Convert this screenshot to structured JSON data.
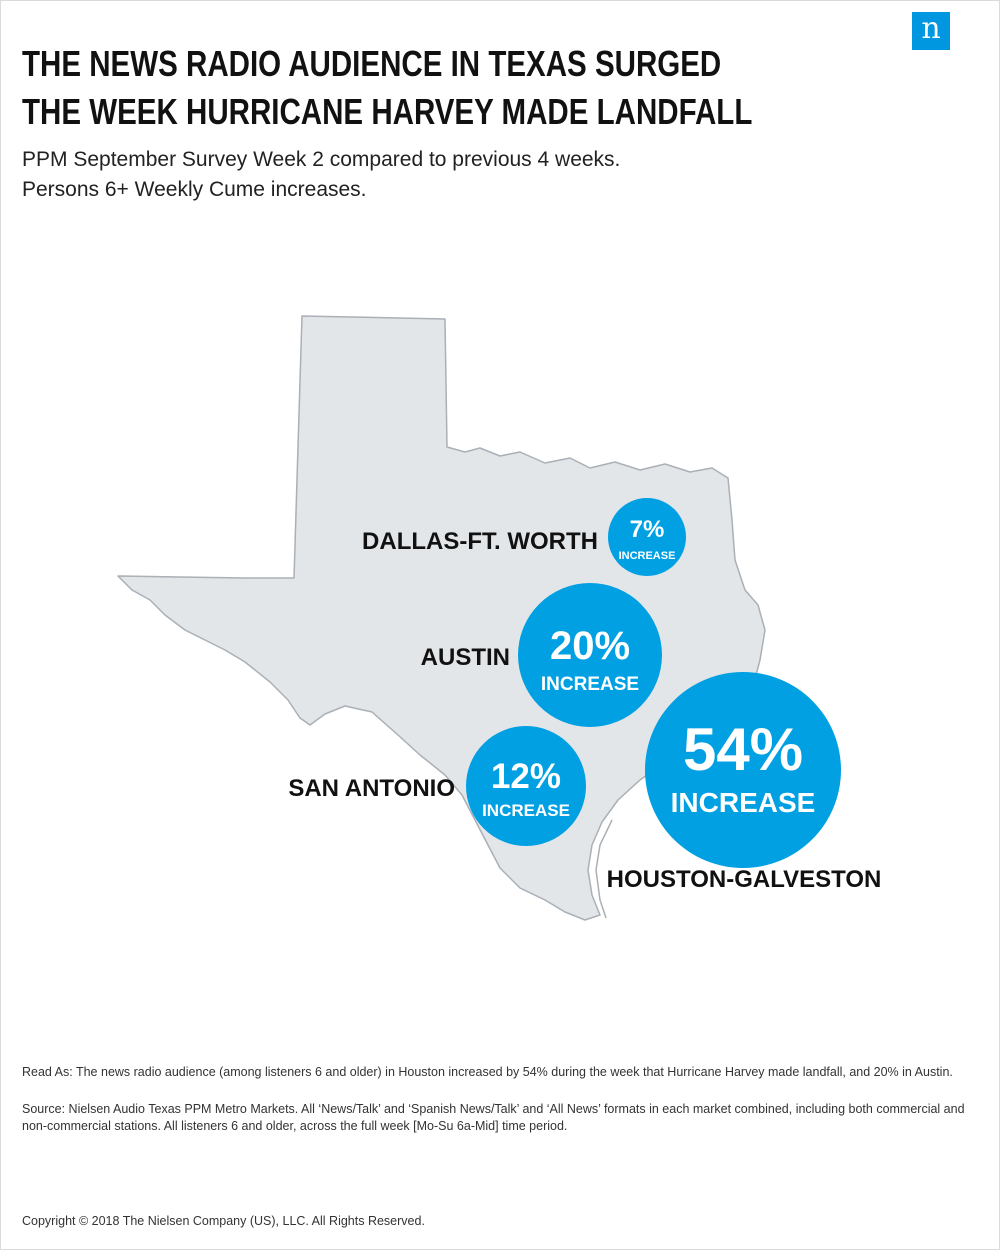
{
  "brand": {
    "logo_letter": "n"
  },
  "title_lines": [
    "THE NEWS RADIO AUDIENCE IN TEXAS SURGED",
    "THE WEEK HURRICANE HARVEY MADE LANDFALL"
  ],
  "subtitle_lines": [
    "PPM September Survey Week 2 compared to previous 4 weeks.",
    "Persons 6+ Weekly Cume increases."
  ],
  "colors": {
    "bubble": "#00a0e3",
    "map_fill": "#e3e6e9",
    "map_stroke": "#a9b0b6"
  },
  "markets": [
    {
      "name": "DALLAS-FT. WORTH",
      "increase": "7%",
      "unit": "INCREASE",
      "value": 7
    },
    {
      "name": "AUSTIN",
      "increase": "20%",
      "unit": "INCREASE",
      "value": 20
    },
    {
      "name": "SAN ANTONIO",
      "increase": "12%",
      "unit": "INCREASE",
      "value": 12
    },
    {
      "name": "HOUSTON-GALVESTON",
      "increase": "54%",
      "unit": "INCREASE",
      "value": 54
    }
  ],
  "notes": {
    "read_as": "Read As: The news radio audience (among listeners 6 and older) in Houston increased by 54% during the week that Hurricane Harvey made landfall, and 20% in Austin.",
    "source": "Source: Nielsen Audio Texas PPM Metro Markets. All ‘News/Talk’ and ‘Spanish News/Talk’ and ‘All News’ formats in each market combined, including both commercial and non-commercial stations. All listeners 6 and older, across the full week [Mo-Su 6a-Mid] time period."
  },
  "copyright": "Copyright © 2018 The Nielsen Company (US), LLC. All Rights Reserved."
}
